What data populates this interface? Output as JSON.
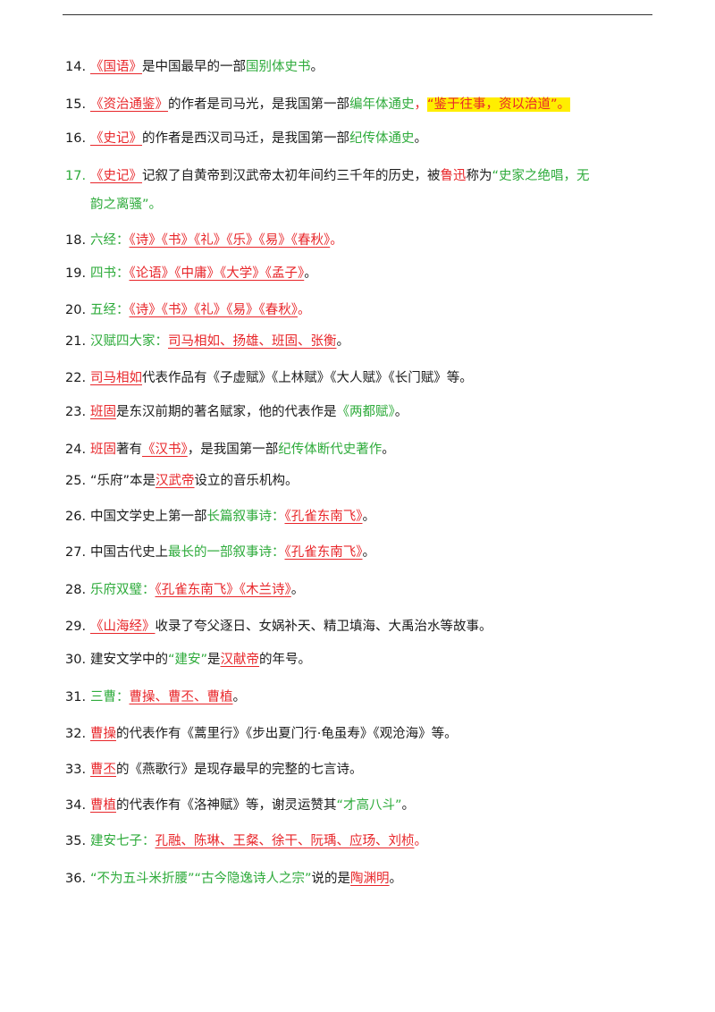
{
  "colors": {
    "red": "#e8262a",
    "green": "#2eab3b",
    "highlight": "#ffee00",
    "text": "#1a1a1a"
  },
  "items": [
    {
      "num": "14.",
      "segments": [
        {
          "t": "《国语》",
          "c": "ru"
        },
        {
          "t": "是中国最早的一部"
        },
        {
          "t": "国别体史书",
          "c": "g"
        },
        {
          "t": "。"
        }
      ]
    },
    {
      "num": "15.",
      "segments": [
        {
          "t": "《资治通鉴》",
          "c": "ru"
        },
        {
          "t": "的作者是司马光，是我国第一部"
        },
        {
          "t": "编年体通史",
          "c": "g"
        },
        {
          "t": "，",
          "c": "r"
        },
        {
          "t": "“鉴于往事，资以治道”。",
          "c": "rh"
        }
      ]
    },
    {
      "num": "16.",
      "segments": [
        {
          "t": "《史记》",
          "c": "ru"
        },
        {
          "t": "的作者是西汉司马迁，是我国第一部"
        },
        {
          "t": "纪传体通史",
          "c": "g"
        },
        {
          "t": "。"
        }
      ]
    },
    {
      "num": "17.",
      "numClass": "g",
      "segments": [
        {
          "t": "《史记》",
          "c": "ru"
        },
        {
          "t": "记叙了自黄帝到汉武帝太初年间约三千年的历史，被"
        },
        {
          "t": "鲁迅",
          "c": "r"
        },
        {
          "t": "称为"
        },
        {
          "t": "“史家之绝唱，无",
          "c": "g"
        }
      ],
      "cont": [
        {
          "t": "韵之离骚”。",
          "c": "g"
        }
      ]
    },
    {
      "num": "18.",
      "segments": [
        {
          "t": "六经：",
          "c": "g"
        },
        {
          "t": "《诗》《书》《礼》《乐》《易》《春秋》",
          "c": "ru"
        },
        {
          "t": "。",
          "c": "r"
        }
      ]
    },
    {
      "num": "19.",
      "segments": [
        {
          "t": "四书：",
          "c": "g"
        },
        {
          "t": "《论语》《中庸》《大学》《孟子》",
          "c": "ru"
        },
        {
          "t": "。"
        }
      ]
    },
    {
      "num": "20.",
      "segments": [
        {
          "t": "五经：",
          "c": "g"
        },
        {
          "t": "《诗》《书》《礼》《易》《春秋》",
          "c": "ru"
        },
        {
          "t": "。",
          "c": "r"
        }
      ]
    },
    {
      "num": "21.",
      "segments": [
        {
          "t": "汉赋四大家：",
          "c": "g"
        },
        {
          "t": "司马相如、扬雄、班固、张衡",
          "c": "ru"
        },
        {
          "t": "。"
        }
      ]
    },
    {
      "num": "22.",
      "segments": [
        {
          "t": "司马相如",
          "c": "ru"
        },
        {
          "t": "代表作品有《子虚赋》《上林赋》《大人赋》《长门赋》等。"
        }
      ]
    },
    {
      "num": "23.",
      "segments": [
        {
          "t": "班固",
          "c": "ru"
        },
        {
          "t": "是东汉前期的著名赋家，他的代表作是"
        },
        {
          "t": "《两都赋》",
          "c": "g"
        },
        {
          "t": "。"
        }
      ]
    },
    {
      "num": "24.",
      "segments": [
        {
          "t": "班固",
          "c": "r"
        },
        {
          "t": "著有"
        },
        {
          "t": "《汉书》",
          "c": "ru"
        },
        {
          "t": "，是我国第一部"
        },
        {
          "t": "纪传体断代史著作",
          "c": "g"
        },
        {
          "t": "。"
        }
      ]
    },
    {
      "num": "25.",
      "segments": [
        {
          "t": "“乐府”本是"
        },
        {
          "t": "汉武帝",
          "c": "ru"
        },
        {
          "t": "设立的音乐机构。"
        }
      ]
    },
    {
      "num": "26.",
      "segments": [
        {
          "t": "中国文学史上第一部"
        },
        {
          "t": "长篇叙事诗：",
          "c": "g"
        },
        {
          "t": "《孔雀东南飞》",
          "c": "ru"
        },
        {
          "t": "。"
        }
      ]
    },
    {
      "num": "27.",
      "segments": [
        {
          "t": "中国古代史上"
        },
        {
          "t": "最长的一部叙事诗：",
          "c": "g"
        },
        {
          "t": "《孔雀东南飞》",
          "c": "ru"
        },
        {
          "t": "。"
        }
      ]
    },
    {
      "num": "28.",
      "segments": [
        {
          "t": "乐府双璧：",
          "c": "g"
        },
        {
          "t": "《孔雀东南飞》《木兰诗》",
          "c": "ru"
        },
        {
          "t": "。"
        }
      ]
    },
    {
      "num": "29.",
      "segments": [
        {
          "t": "《山海经》",
          "c": "ru"
        },
        {
          "t": "收录了夸父逐日、女娲补天、精卫填海、大禹治水等故事。"
        }
      ]
    },
    {
      "num": "30.",
      "segments": [
        {
          "t": "建安文学中的"
        },
        {
          "t": "“建安”",
          "c": "g"
        },
        {
          "t": "是"
        },
        {
          "t": "汉献帝",
          "c": "ru"
        },
        {
          "t": "的年号。"
        }
      ]
    },
    {
      "num": "31.",
      "segments": [
        {
          "t": "三曹：",
          "c": "g"
        },
        {
          "t": "曹操、曹丕、曹植",
          "c": "ru"
        },
        {
          "t": "。"
        }
      ]
    },
    {
      "num": "32.",
      "segments": [
        {
          "t": "曹操",
          "c": "ru"
        },
        {
          "t": "的代表作有《蒿里行》《步出夏门行·龟虽寿》《观沧海》等。"
        }
      ]
    },
    {
      "num": "33.",
      "segments": [
        {
          "t": "曹丕",
          "c": "ru"
        },
        {
          "t": "的《燕歌行》是现存最早的完整的七言诗。"
        }
      ]
    },
    {
      "num": "34.",
      "segments": [
        {
          "t": "曹植",
          "c": "ru"
        },
        {
          "t": "的代表作有《洛神赋》等，谢灵运赞其"
        },
        {
          "t": "“才高八斗”",
          "c": "g"
        },
        {
          "t": "。"
        }
      ]
    },
    {
      "num": "35.",
      "segments": [
        {
          "t": "建安七子：",
          "c": "g"
        },
        {
          "t": "孔融、陈琳、王粲、徐干、阮瑀、应玚、刘桢",
          "c": "ru"
        },
        {
          "t": "。",
          "c": "r"
        }
      ]
    },
    {
      "num": "36.",
      "segments": [
        {
          "t": "“不为五斗米折腰”“古今隐逸诗人之宗”",
          "c": "g"
        },
        {
          "t": "说的是"
        },
        {
          "t": "陶渊明",
          "c": "ru"
        },
        {
          "t": "。"
        }
      ]
    }
  ]
}
